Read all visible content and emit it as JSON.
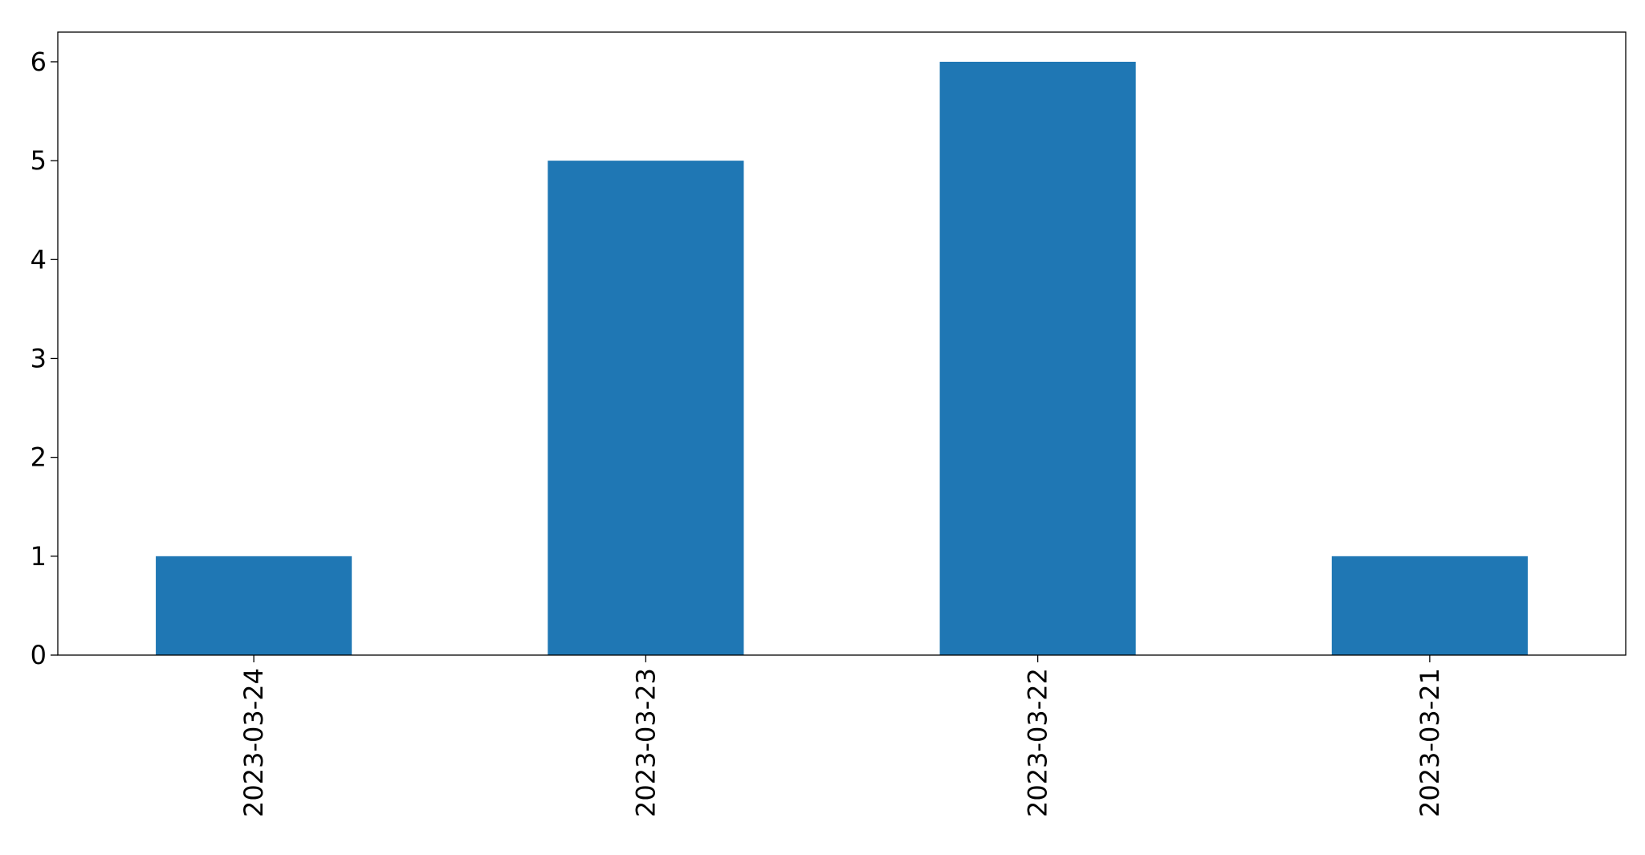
{
  "chart_data": {
    "type": "bar",
    "categories": [
      "2023-03-24",
      "2023-03-23",
      "2023-03-22",
      "2023-03-21"
    ],
    "values": [
      1,
      5,
      6,
      1
    ],
    "title": "",
    "xlabel": "",
    "ylabel": "",
    "ylim": [
      0,
      6.3
    ],
    "yticks": [
      0,
      1,
      2,
      3,
      4,
      5,
      6
    ],
    "xtick_rotation": "vertical",
    "bar_color": "#1f77b4",
    "grid": false,
    "legend": "none"
  }
}
